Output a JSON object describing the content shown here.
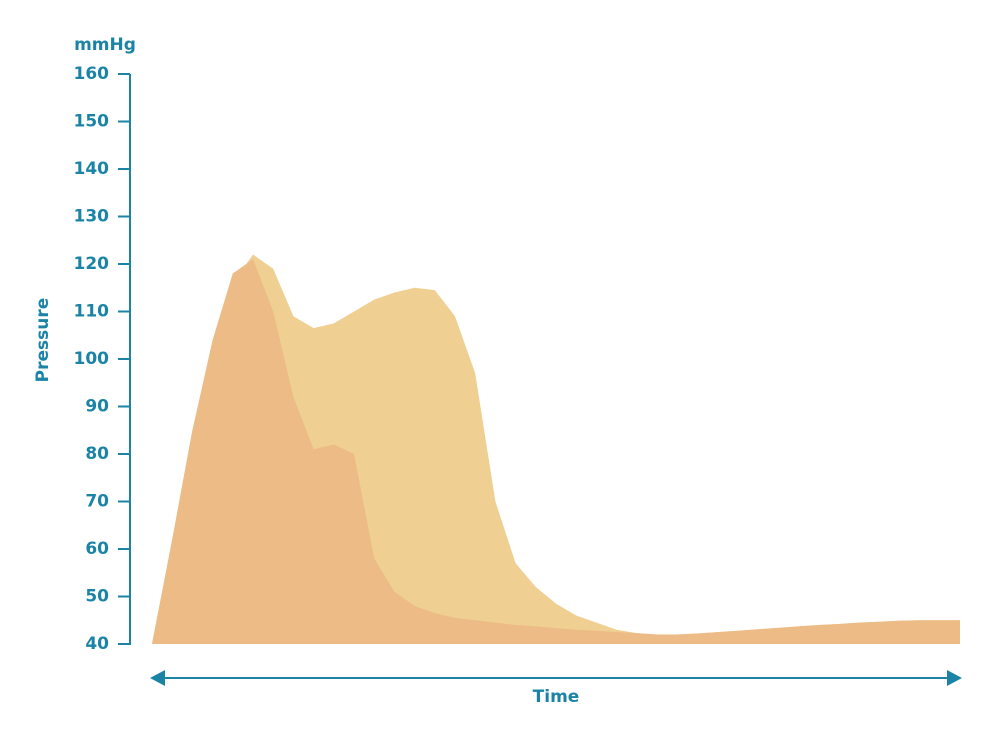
{
  "chart_data": {
    "type": "area",
    "y_unit": "mmHg",
    "ylabel": "Pressure",
    "xlabel": "Time",
    "categories": [
      null,
      null,
      null,
      null,
      null,
      null,
      null,
      null,
      null,
      null,
      null,
      null,
      null,
      null,
      null,
      null,
      null,
      null,
      null,
      null,
      null,
      null,
      null,
      null,
      null,
      null,
      null,
      null,
      null,
      null,
      null,
      null,
      null,
      null,
      null,
      null,
      null,
      null,
      null,
      null,
      null
    ],
    "series": [
      {
        "color": "#efcf92",
        "values": [
          40,
          62,
          85,
          103,
          116,
          122,
          119,
          109,
          106.5,
          107.5,
          110,
          112.5,
          114,
          115,
          114.5,
          109,
          97,
          70,
          57,
          52,
          48.5,
          46,
          44.5,
          43,
          42.3,
          42,
          42,
          42.2,
          42.5,
          42.8,
          43.1,
          43.4,
          43.7,
          44,
          44.2,
          44.5,
          44.7,
          44.9,
          45,
          45,
          45
        ]
      },
      {
        "color": "#ecbb86",
        "values": [
          40,
          62,
          85,
          104,
          118,
          121,
          110,
          92,
          81,
          82,
          80,
          58,
          51,
          48,
          46.5,
          45.5,
          45,
          44.5,
          44,
          43.7,
          43.3,
          43,
          42.8,
          42.5,
          42.3,
          42,
          42,
          42.2,
          42.5,
          42.8,
          43.1,
          43.4,
          43.7,
          44,
          44.2,
          44.5,
          44.7,
          44.9,
          45,
          45,
          45
        ]
      }
    ],
    "ylim": [
      40,
      160
    ],
    "yticks": [
      40,
      50,
      60,
      70,
      80,
      90,
      100,
      110,
      120,
      130,
      140,
      150,
      160
    ]
  }
}
